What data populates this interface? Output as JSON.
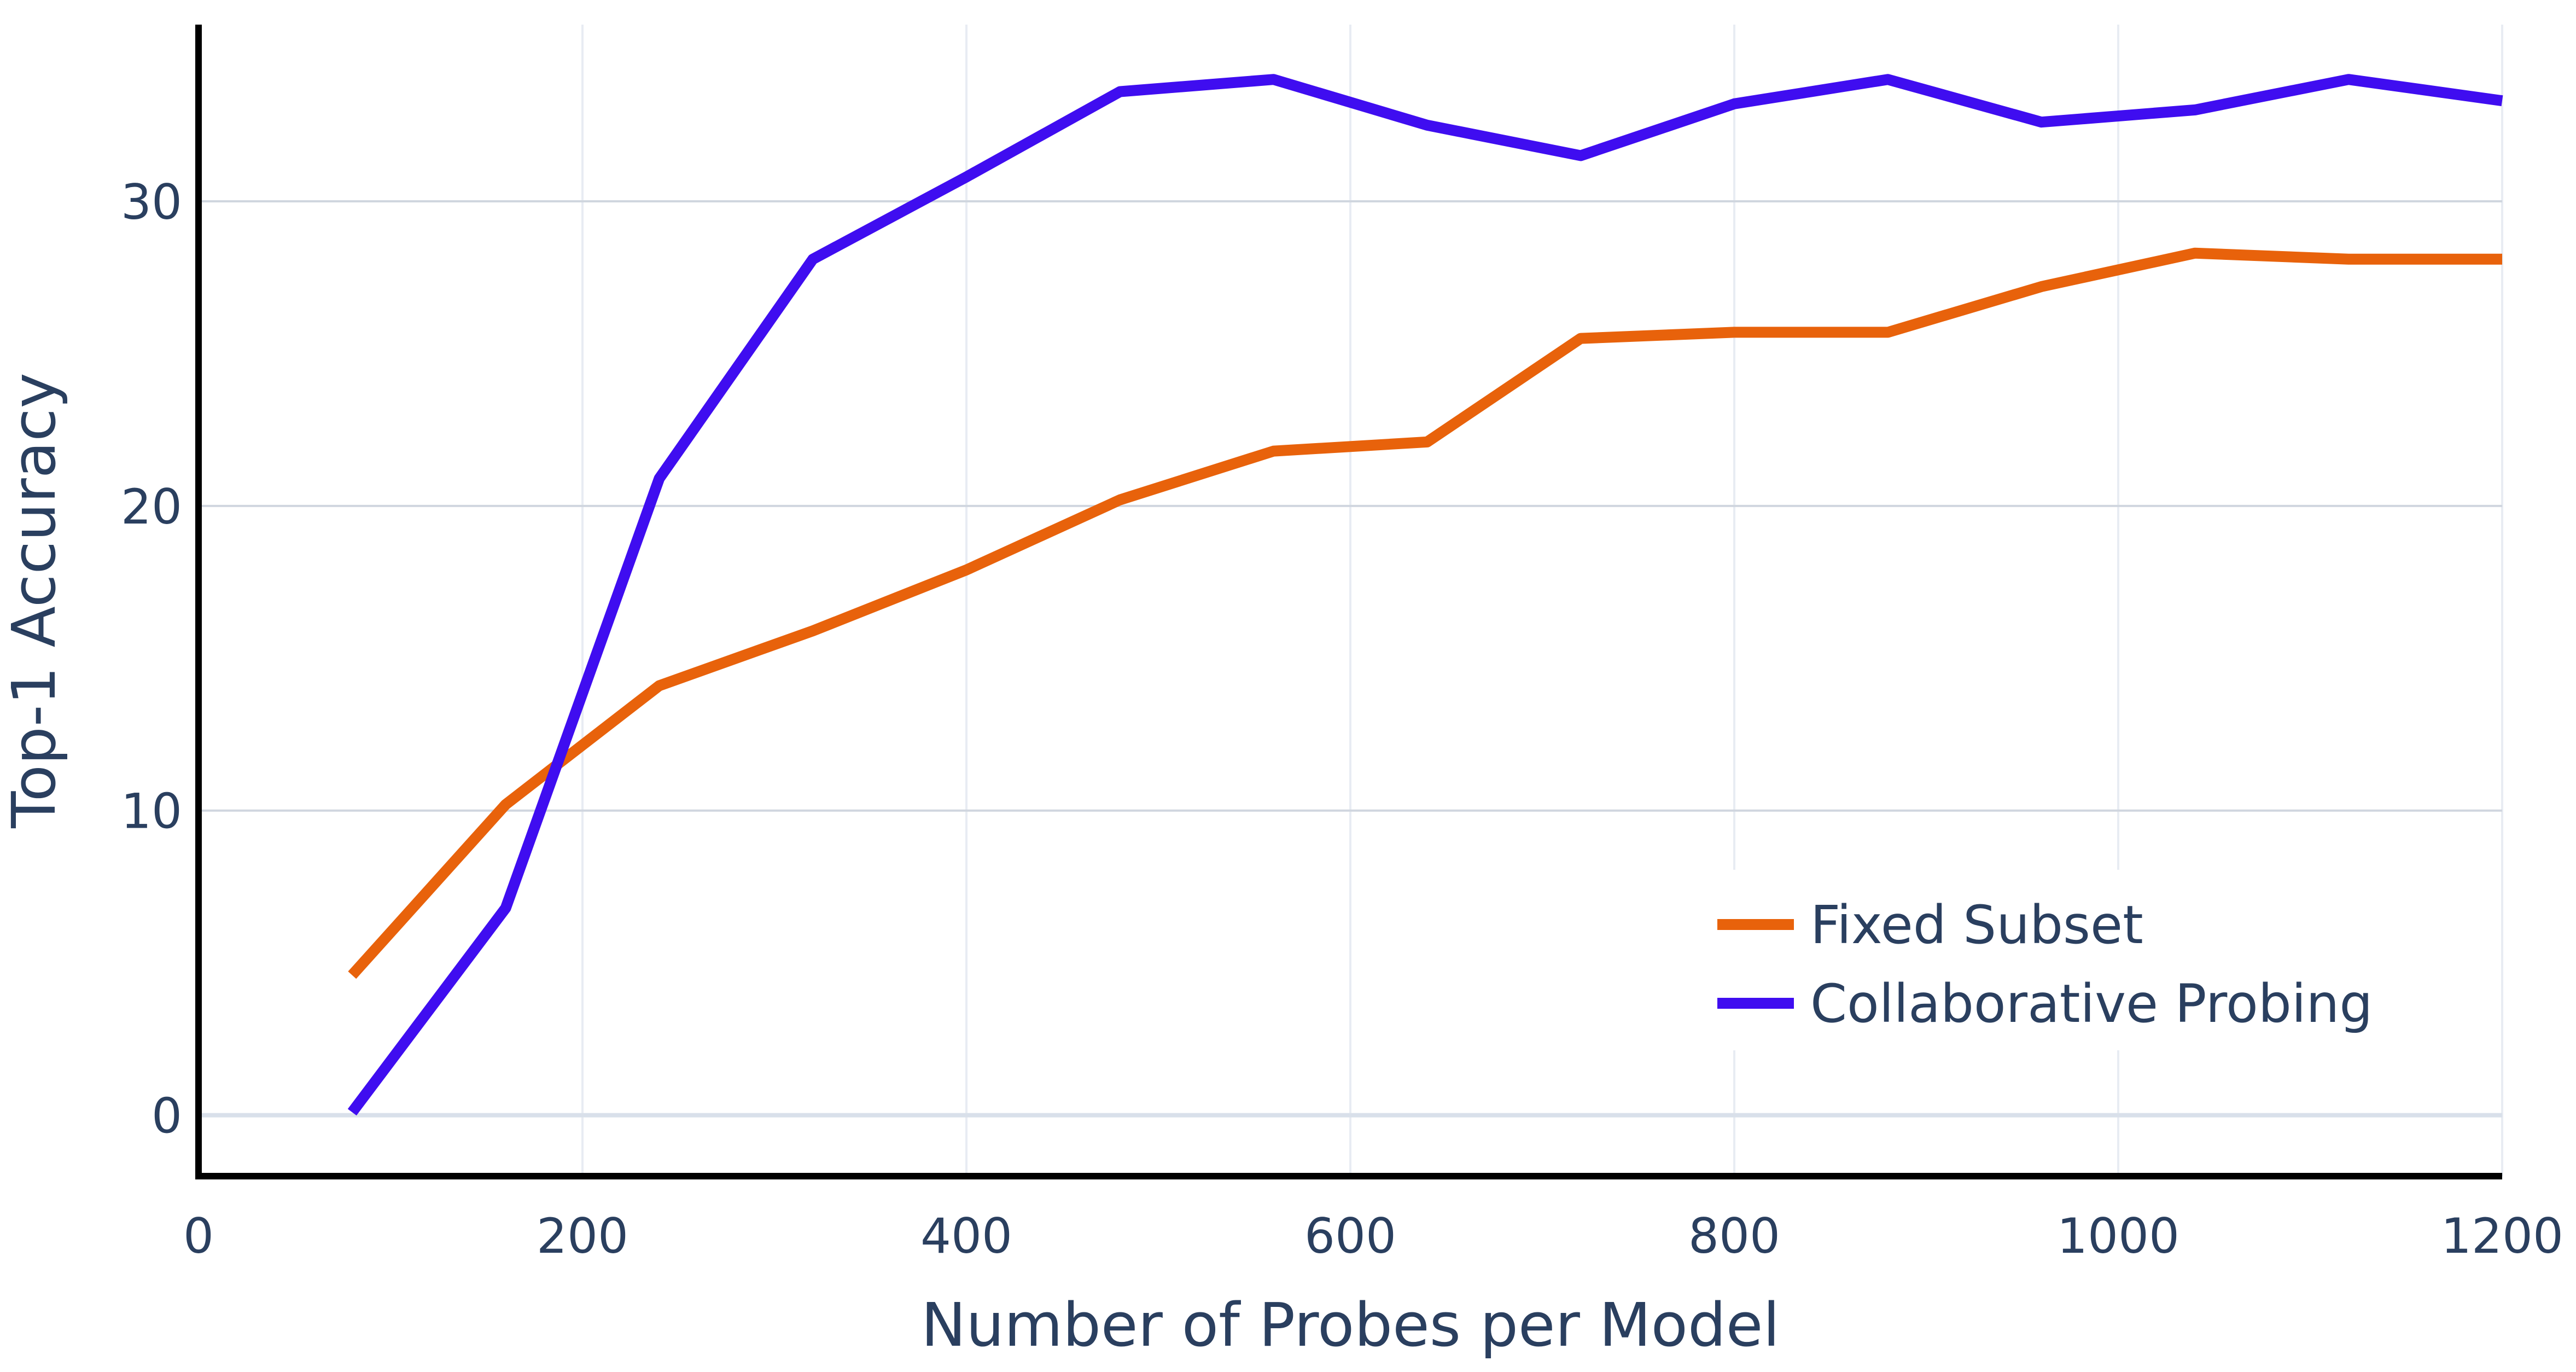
{
  "chart_data": {
    "type": "line",
    "title": "",
    "xlabel": "Number of Probes per Model",
    "ylabel": "Top-1 Accuracy",
    "xlim": [
      0,
      1200
    ],
    "ylim": [
      -2,
      35.8
    ],
    "x_ticks": [
      0,
      200,
      400,
      600,
      800,
      1000,
      1200
    ],
    "y_ticks": [
      0,
      10,
      20,
      30
    ],
    "grid": true,
    "legend_position": "bottom-right",
    "x": [
      80,
      160,
      240,
      320,
      400,
      480,
      560,
      640,
      720,
      800,
      880,
      960,
      1040,
      1120,
      1200
    ],
    "series": [
      {
        "name": "Fixed Subset",
        "color": "#e8620b",
        "values": [
          4.6,
          10.2,
          14.1,
          15.9,
          17.9,
          20.2,
          21.8,
          22.1,
          25.5,
          25.7,
          25.7,
          27.2,
          28.3,
          28.1,
          28.1
        ]
      },
      {
        "name": "Collaborative Probing",
        "color": "#3f0df0",
        "values": [
          0.1,
          6.8,
          20.9,
          28.1,
          30.8,
          33.6,
          34.0,
          32.5,
          31.5,
          33.2,
          34.0,
          32.6,
          33.0,
          34.0,
          33.3
        ]
      }
    ]
  }
}
